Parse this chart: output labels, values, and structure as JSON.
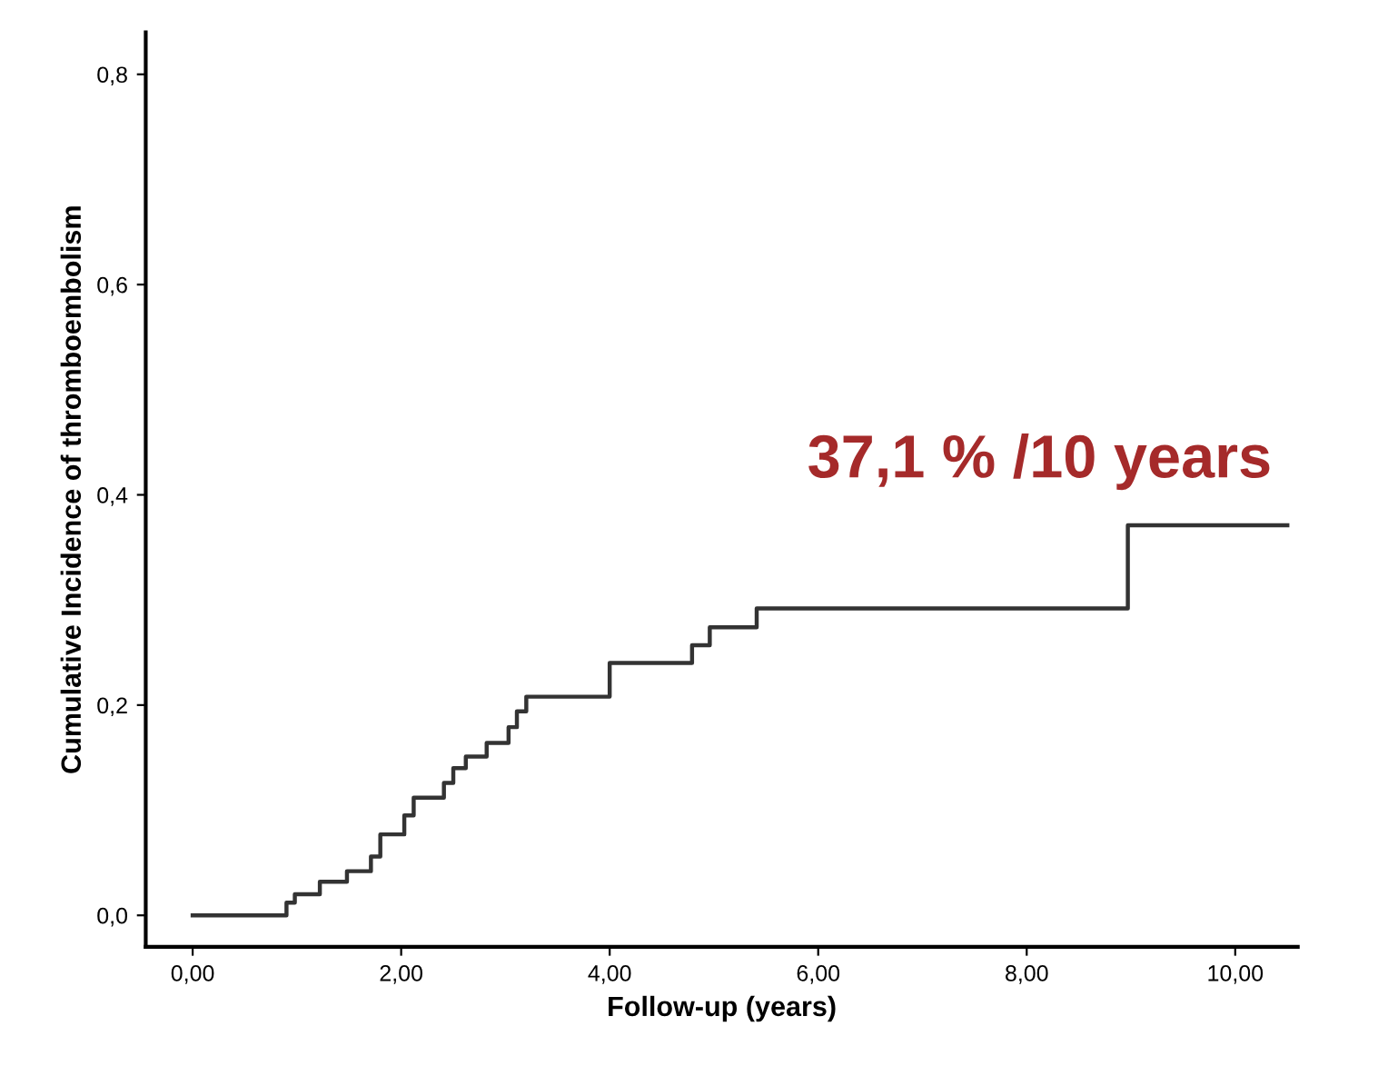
{
  "chart_data": {
    "type": "step",
    "xlabel": "Follow-up (years)",
    "ylabel": "Cumulative Incidence of thromboembolism",
    "x": [
      0,
      0.9,
      0.98,
      1.22,
      1.48,
      1.71,
      1.8,
      2.03,
      2.12,
      2.41,
      2.5,
      2.62,
      2.82,
      3.03,
      3.11,
      3.2,
      4.0,
      4.79,
      4.96,
      5.41,
      8.97,
      10.5
    ],
    "series": [
      {
        "color": "#333333",
        "values": [
          0,
          0.012,
          0.02,
          0.032,
          0.042,
          0.056,
          0.077,
          0.095,
          0.112,
          0.126,
          0.14,
          0.151,
          0.164,
          0.179,
          0.194,
          0.208,
          0.24,
          0.257,
          0.274,
          0.292,
          0.371,
          0.371
        ]
      }
    ],
    "xlim": [
      -0.45,
      10.6
    ],
    "ylim": [
      -0.03,
      0.84
    ],
    "xticks": [
      {
        "value": 0,
        "label": "0,00"
      },
      {
        "value": 2,
        "label": "2,00"
      },
      {
        "value": 4,
        "label": "4,00"
      },
      {
        "value": 6,
        "label": "6,00"
      },
      {
        "value": 8,
        "label": "8,00"
      },
      {
        "value": 10,
        "label": "10,00"
      }
    ],
    "yticks": [
      {
        "value": 0,
        "label": "0,0"
      },
      {
        "value": 0.2,
        "label": "0,2"
      },
      {
        "value": 0.4,
        "label": "0,4"
      },
      {
        "value": 0.6,
        "label": "0,6"
      },
      {
        "value": 0.8,
        "label": "0,8"
      }
    ],
    "annotations": [
      {
        "text": "37,1 % /10 years",
        "x": 8.97,
        "y": 0.371
      }
    ],
    "grid": false,
    "legend": false
  }
}
